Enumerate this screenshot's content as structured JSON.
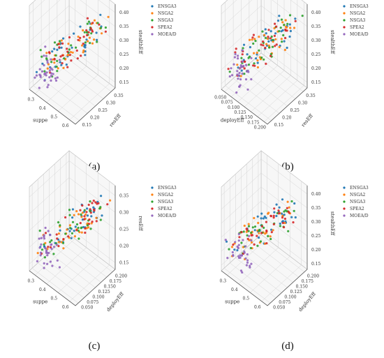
{
  "legend_labels": [
    "ENSGA3",
    "NSGA2",
    "NSGA3",
    "SPEA2",
    "MOEA/D"
  ],
  "series_colors": [
    "#1f77b4",
    "#ff7f0e",
    "#2ca02c",
    "#d62728",
    "#9467bd"
  ],
  "chart_data": [
    {
      "type": "scatter",
      "caption": "(a)",
      "xlabel": "suppe",
      "ylabel": "resEff",
      "zlabel": "stealthEff",
      "xticks": [
        "0.3",
        "0.4",
        "0.5",
        "0.6"
      ],
      "yticks": [
        "0.15",
        "0.20",
        "0.25",
        "0.30",
        "0.35"
      ],
      "zticks": [
        "0.15",
        "0.20",
        "0.25",
        "0.30",
        "0.35",
        "0.40"
      ],
      "xlim": [
        0.25,
        0.65
      ],
      "ylim": [
        0.13,
        0.37
      ],
      "zlim": [
        0.13,
        0.42
      ],
      "grid": true,
      "legend_position": "top-right"
    },
    {
      "type": "scatter",
      "caption": "(b)",
      "xlabel": "deployEff",
      "ylabel": "resEff",
      "zlabel": "stealthEff",
      "xticks": [
        "0.050",
        "0.075",
        "0.100",
        "0.125",
        "0.150",
        "0.175",
        "0.200"
      ],
      "yticks": [
        "0.15",
        "0.20",
        "0.25",
        "0.30",
        "0.35"
      ],
      "zticks": [
        "0.15",
        "0.20",
        "0.25",
        "0.30",
        "0.35",
        "0.40"
      ],
      "xlim": [
        0.04,
        0.21
      ],
      "ylim": [
        0.13,
        0.37
      ],
      "zlim": [
        0.13,
        0.42
      ],
      "grid": true,
      "legend_position": "top-right"
    },
    {
      "type": "scatter",
      "caption": "(c)",
      "xlabel": "suppe",
      "ylabel": "deployEff",
      "zlabel": "resEff",
      "xticks": [
        "0.3",
        "0.4",
        "0.5",
        "0.6"
      ],
      "yticks": [
        "0.050",
        "0.075",
        "0.100",
        "0.125",
        "0.150",
        "0.175",
        "0.200"
      ],
      "zticks": [
        "0.15",
        "0.20",
        "0.25",
        "0.30",
        "0.35"
      ],
      "xlim": [
        0.25,
        0.65
      ],
      "ylim": [
        0.04,
        0.21
      ],
      "zlim": [
        0.13,
        0.37
      ],
      "grid": true,
      "legend_position": "top-right"
    },
    {
      "type": "scatter",
      "caption": "(d)",
      "xlabel": "suppe",
      "ylabel": "deployEff",
      "zlabel": "stealthEff",
      "xticks": [
        "0.3",
        "0.4",
        "0.5",
        "0.6"
      ],
      "yticks": [
        "0.050",
        "0.075",
        "0.100",
        "0.125",
        "0.150",
        "0.175",
        "0.200"
      ],
      "zticks": [
        "0.15",
        "0.20",
        "0.25",
        "0.30",
        "0.35",
        "0.40"
      ],
      "xlim": [
        0.25,
        0.65
      ],
      "ylim": [
        0.04,
        0.21
      ],
      "zlim": [
        0.13,
        0.42
      ],
      "grid": true,
      "legend_position": "top-right"
    }
  ]
}
